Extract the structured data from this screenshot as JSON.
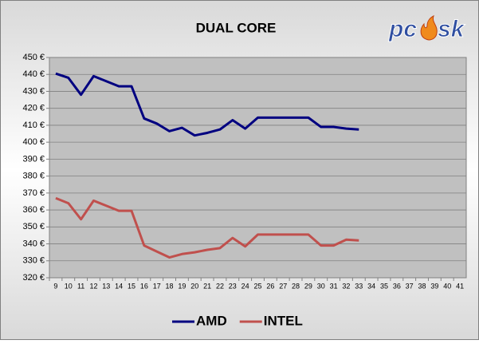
{
  "chart_data": {
    "type": "line",
    "title": "DUAL CORE",
    "logo": {
      "left": "pc",
      "right": "sk"
    },
    "categories": [
      "9",
      "10",
      "11",
      "12",
      "13",
      "14",
      "15",
      "16",
      "17",
      "18",
      "19",
      "20",
      "21",
      "22",
      "23",
      "24",
      "25",
      "26",
      "27",
      "28",
      "29",
      "30",
      "31",
      "32",
      "33",
      "34",
      "35",
      "36",
      "37",
      "38",
      "39",
      "40",
      "41"
    ],
    "series": [
      {
        "name": "AMD",
        "color": "#000080",
        "values": [
          440.5,
          438,
          428,
          439,
          436,
          433,
          433,
          414,
          411,
          406.5,
          408.5,
          404,
          405.5,
          407.5,
          413,
          408,
          414.5,
          414.5,
          414.5,
          414.5,
          414.5,
          409,
          409,
          408,
          407.5,
          null,
          null,
          null,
          null,
          null,
          null,
          null,
          null
        ]
      },
      {
        "name": "INTEL",
        "color": "#c0504d",
        "values": [
          367,
          364,
          354.5,
          365.5,
          362.5,
          359.5,
          359.5,
          339,
          335.5,
          332,
          334,
          335,
          336.5,
          337.5,
          343.5,
          338.5,
          345.5,
          345.5,
          345.5,
          345.5,
          345.5,
          339,
          339,
          342.5,
          342,
          null,
          null,
          null,
          null,
          null,
          null,
          null,
          null
        ]
      }
    ],
    "ylim": [
      320,
      450
    ],
    "yticks": [
      {
        "value": 320,
        "label": "320 €"
      },
      {
        "value": 330,
        "label": "330 €"
      },
      {
        "value": 340,
        "label": "340 €"
      },
      {
        "value": 350,
        "label": "350 €"
      },
      {
        "value": 360,
        "label": "360 €"
      },
      {
        "value": 370,
        "label": "370 €"
      },
      {
        "value": 380,
        "label": "380 €"
      },
      {
        "value": 390,
        "label": "390 €"
      },
      {
        "value": 400,
        "label": "400 €"
      },
      {
        "value": 410,
        "label": "410 €"
      },
      {
        "value": 420,
        "label": "420 €"
      },
      {
        "value": 430,
        "label": "430 €"
      },
      {
        "value": 440,
        "label": "440 €"
      },
      {
        "value": 450,
        "label": "450 €"
      }
    ],
    "grid": true,
    "legend": "bottom"
  }
}
